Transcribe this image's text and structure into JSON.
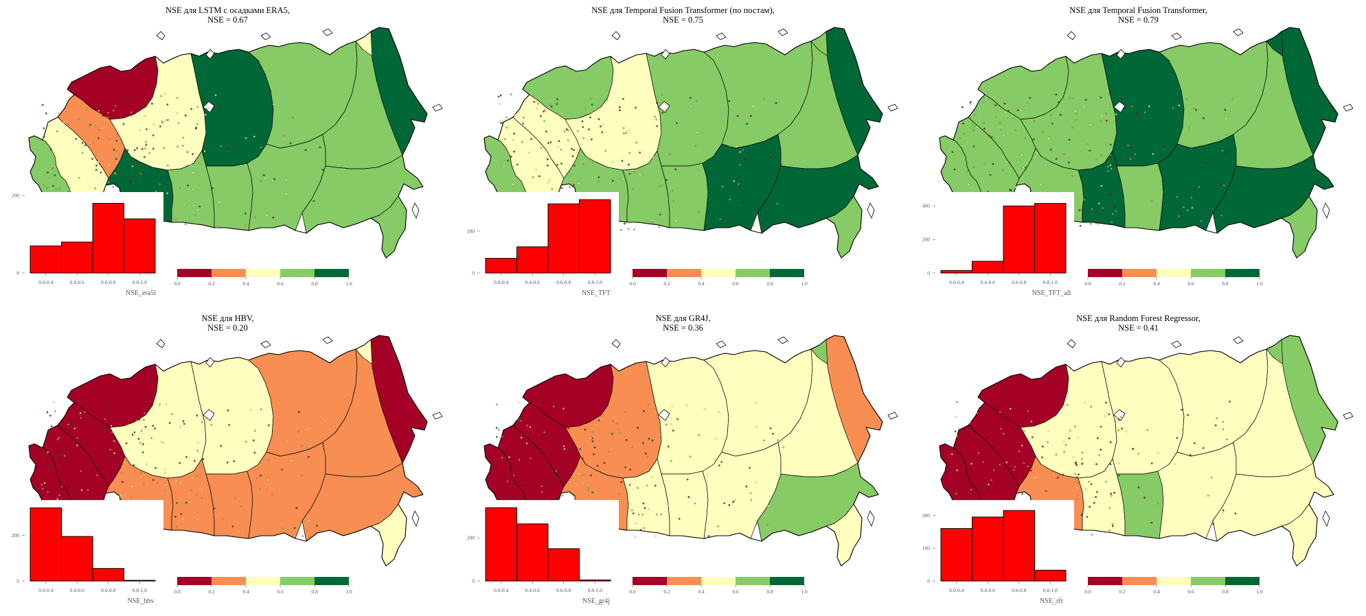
{
  "colors": {
    "bins": [
      "#a50026",
      "#f98e52",
      "#feffbe",
      "#86cb66",
      "#006837"
    ],
    "hist": "#ff0000"
  },
  "colorbar_ticks": [
    "0.0",
    "0.2",
    "0.4",
    "0.6",
    "0.8",
    "1.0"
  ],
  "chart_data": [
    {
      "type": "bar",
      "title": [
        "NSE для LSTM с осадками ERA5,",
        "NSE = 0.67"
      ],
      "xlabel": "NSE_era5l",
      "categories": [
        "0.0-0.4",
        "0.4-0.6",
        "0.6-0.8",
        "0.8-1.0"
      ],
      "values": [
        70,
        80,
        180,
        140
      ],
      "yticks": [
        0,
        200
      ],
      "ylim": [
        0,
        195
      ],
      "map_regions": [
        3,
        2,
        1,
        0,
        2,
        4,
        4,
        3,
        3,
        3,
        3,
        3,
        3,
        3,
        2,
        4
      ]
    },
    {
      "type": "bar",
      "title": [
        "NSE для Temporal Fusion Transformer (по постам),",
        "NSE = 0.75"
      ],
      "xlabel": "NSE_TFT",
      "categories": [
        "0.0-0.4",
        "0.4-0.6",
        "0.6-0.8",
        "0.8-1.0"
      ],
      "values": [
        70,
        125,
        330,
        350
      ],
      "yticks": [
        0,
        200
      ],
      "ylim": [
        0,
        360
      ],
      "map_regions": [
        3,
        2,
        2,
        3,
        2,
        3,
        3,
        3,
        3,
        3,
        4,
        3,
        4,
        3,
        3,
        4
      ]
    },
    {
      "type": "bar",
      "title": [
        "NSE для Temporal Fusion Transformer,",
        "NSE = 0.79"
      ],
      "xlabel": "NSE_TFT_all",
      "categories": [
        "0.0-0.4",
        "0.4-0.6",
        "0.6-0.8",
        "0.8-1.0"
      ],
      "values": [
        15,
        70,
        400,
        415
      ],
      "yticks": [
        0,
        200,
        400
      ],
      "ylim": [
        0,
        450
      ],
      "map_regions": [
        3,
        3,
        3,
        3,
        3,
        4,
        3,
        4,
        3,
        3,
        4,
        3,
        4,
        3,
        4,
        4
      ]
    },
    {
      "type": "bar",
      "title": [
        "NSE для HBV,",
        "NSE = 0.20"
      ],
      "xlabel": "NSE_hbv",
      "categories": [
        "0.0-0.4",
        "0.4-0.6",
        "0.6-0.8",
        "0.8-1.0"
      ],
      "values": [
        320,
        195,
        55,
        3
      ],
      "yticks": [
        0,
        200
      ],
      "ylim": [
        0,
        330
      ],
      "map_regions": [
        0,
        0,
        0,
        0,
        2,
        2,
        1,
        1,
        1,
        1,
        1,
        1,
        1,
        2,
        2,
        0
      ]
    },
    {
      "type": "bar",
      "title": [
        "NSE для GR4J,",
        "NSE = 0.36"
      ],
      "xlabel": "NSE_gr4j",
      "categories": [
        "0.0-0.4",
        "0.4-0.6",
        "0.6-0.8",
        "0.8-1.0"
      ],
      "values": [
        340,
        265,
        150,
        5
      ],
      "yticks": [
        0,
        200
      ],
      "ylim": [
        0,
        350
      ],
      "map_regions": [
        0,
        0,
        0,
        0,
        1,
        2,
        1,
        2,
        2,
        2,
        2,
        2,
        3,
        2,
        3,
        1
      ]
    },
    {
      "type": "bar",
      "title": [
        "NSE для Random Forest Regressor,",
        "NSE = 0.41"
      ],
      "xlabel": "NSE_rfr",
      "categories": [
        "0.0-0.4",
        "0.4-0.6",
        "0.6-0.8",
        "0.8-1.0"
      ],
      "values": [
        160,
        195,
        215,
        33
      ],
      "yticks": [
        0,
        100,
        200
      ],
      "ylim": [
        0,
        230
      ],
      "map_regions": [
        0,
        0,
        0,
        0,
        2,
        2,
        1,
        2,
        3,
        2,
        2,
        2,
        2,
        2,
        3,
        3
      ]
    }
  ]
}
